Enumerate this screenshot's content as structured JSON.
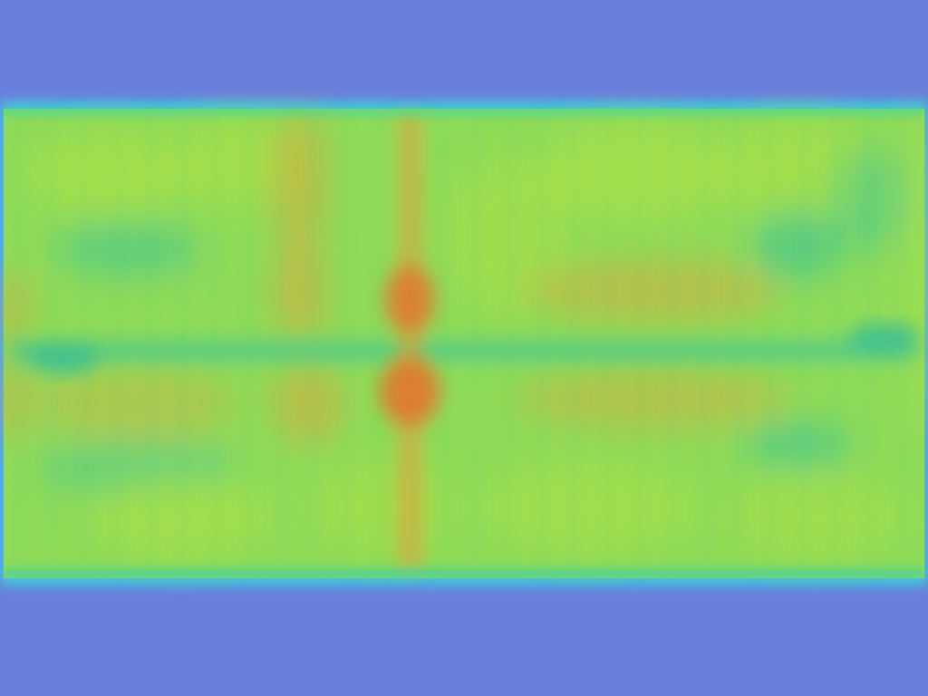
{
  "colors": {
    "background": "#6a7edb",
    "border_glow": "#44c8e6",
    "base_field": "#8fdc5a",
    "low": "#4fc98a",
    "mid": "#a8e04a",
    "high": "#e0a23a",
    "peak": "#e07a2e"
  },
  "overlay": {
    "kind": "attention-heatmap",
    "dominant_axis": "horizontal",
    "hot_vertical_band": true,
    "cool_horizontal_band": true
  }
}
